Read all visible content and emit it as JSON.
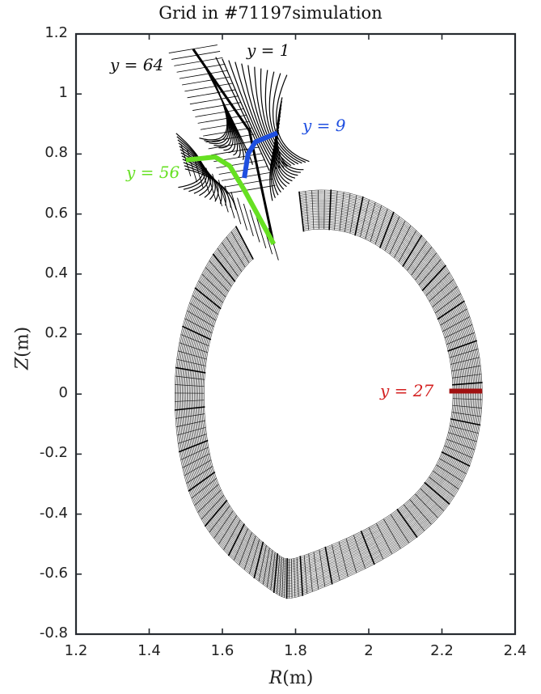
{
  "chart_data": {
    "type": "line",
    "title": "Grid in #71197simulation",
    "xlabel": "R(m)",
    "ylabel": "Z(m)",
    "xlim": [
      1.2,
      2.4
    ],
    "ylim": [
      -0.8,
      1.2
    ],
    "xticks": [
      "1.2",
      "1.4",
      "1.6",
      "1.8",
      "2",
      "2.2",
      "2.4"
    ],
    "yticks": [
      "1.2",
      "1",
      "0.8",
      "0.6",
      "0.4",
      "0.2",
      "0",
      "-0.2",
      "-0.4",
      "-0.6",
      "-0.8"
    ],
    "grid": false,
    "description": "Field-aligned mesh of a diverted tokamak plasma edge: annular core/SOL grid with an X-point and divertor legs at the top",
    "x_point": {
      "R": 1.74,
      "Z": 0.5
    },
    "ring": {
      "center_R": 1.89,
      "center_Z": 0.0,
      "inner_R_half_width": 0.34,
      "outer_R_half_width": 0.42,
      "inner_Z_half_height": 0.55,
      "outer_Z_half_height": 0.68,
      "bottom_tip": {
        "R": 1.75,
        "Z": -0.68
      },
      "outer_midplane": {
        "R_inner": 2.22,
        "R_outer": 2.31,
        "Z": 0.0
      }
    },
    "legs": {
      "upper_left_tip": {
        "R": 1.52,
        "Z": 1.15
      },
      "upper_right_end": {
        "R": 1.75,
        "Z": 0.87
      },
      "left_end": {
        "R": 1.5,
        "Z": 0.78
      }
    },
    "highlighted_lines": [
      {
        "label": "y = 1",
        "color": "#000000",
        "label_pos": {
          "R": 1.66,
          "Z": 1.13
        }
      },
      {
        "label": "y = 9",
        "color": "#1f4fe0",
        "label_pos": {
          "R": 1.78,
          "Z": 0.89
        },
        "path": [
          [
            1.66,
            0.72
          ],
          [
            1.67,
            0.8
          ],
          [
            1.69,
            0.84
          ],
          [
            1.75,
            0.87
          ]
        ]
      },
      {
        "label": "y = 27",
        "color": "#a01010",
        "label_pos": {
          "R": 2.02,
          "Z": 0.01
        },
        "path": [
          [
            2.22,
            0.01
          ],
          [
            2.31,
            0.01
          ]
        ]
      },
      {
        "label": "y = 56",
        "color": "#66e022",
        "label_pos": {
          "R": 1.28,
          "Z": 0.74
        },
        "path": [
          [
            1.5,
            0.78
          ],
          [
            1.58,
            0.79
          ],
          [
            1.62,
            0.76
          ],
          [
            1.66,
            0.68
          ],
          [
            1.74,
            0.5
          ]
        ]
      },
      {
        "label": "y = 64",
        "color": "#000000",
        "label_pos": {
          "R": 1.3,
          "Z": 1.1
        }
      }
    ]
  },
  "annotations": {
    "y1": "y = 1",
    "y9": "y = 9",
    "y27": "y = 27",
    "y56": "y = 56",
    "y64": "y = 64"
  },
  "labels": {
    "title": "Grid in #71197simulation",
    "xlabel_var": "R",
    "xlabel_unit": "(m)",
    "ylabel_var": "Z",
    "ylabel_unit": "(m)"
  },
  "colors": {
    "axis": "#262b30",
    "mesh": "#1a1a1a",
    "y9": "#1f4fe0",
    "y27": "#a01010",
    "y56": "#66e022"
  }
}
